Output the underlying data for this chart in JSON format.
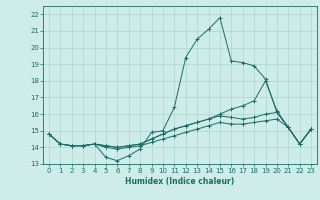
{
  "xlabel": "Humidex (Indice chaleur)",
  "bg_color": "#cdecea",
  "grid_color": "#aed4d0",
  "line_color": "#1a6e62",
  "xlim": [
    -0.5,
    23.5
  ],
  "ylim": [
    13,
    22.5
  ],
  "xticks": [
    0,
    1,
    2,
    3,
    4,
    5,
    6,
    7,
    8,
    9,
    10,
    11,
    12,
    13,
    14,
    15,
    16,
    17,
    18,
    19,
    20,
    21,
    22,
    23
  ],
  "yticks": [
    13,
    14,
    15,
    16,
    17,
    18,
    19,
    20,
    21,
    22
  ],
  "lines": [
    {
      "x": [
        0,
        1,
        2,
        3,
        4,
        5,
        6,
        7,
        8,
        9,
        10,
        11,
        12,
        13,
        14,
        15,
        16,
        17,
        18,
        19,
        20,
        21,
        22,
        23
      ],
      "y": [
        14.8,
        14.2,
        14.1,
        14.1,
        14.2,
        13.4,
        13.2,
        13.5,
        13.9,
        14.9,
        15.0,
        16.4,
        19.4,
        20.5,
        21.1,
        21.8,
        19.2,
        19.1,
        18.9,
        18.1,
        16.1,
        15.2,
        14.2,
        15.1
      ]
    },
    {
      "x": [
        0,
        1,
        2,
        3,
        4,
        5,
        6,
        7,
        8,
        9,
        10,
        11,
        12,
        13,
        14,
        15,
        16,
        17,
        18,
        19,
        20,
        21,
        22,
        23
      ],
      "y": [
        14.8,
        14.2,
        14.1,
        14.1,
        14.2,
        14.1,
        14.0,
        14.1,
        14.2,
        14.5,
        14.8,
        15.1,
        15.3,
        15.5,
        15.7,
        16.0,
        16.3,
        16.5,
        16.8,
        18.0,
        16.2,
        15.2,
        14.2,
        15.1
      ]
    },
    {
      "x": [
        0,
        1,
        2,
        3,
        4,
        5,
        6,
        7,
        8,
        9,
        10,
        11,
        12,
        13,
        14,
        15,
        16,
        17,
        18,
        19,
        20,
        21,
        22,
        23
      ],
      "y": [
        14.8,
        14.2,
        14.1,
        14.1,
        14.2,
        14.1,
        14.0,
        14.1,
        14.2,
        14.5,
        14.8,
        15.1,
        15.3,
        15.5,
        15.7,
        15.9,
        15.8,
        15.7,
        15.8,
        16.0,
        16.1,
        15.2,
        14.2,
        15.1
      ]
    },
    {
      "x": [
        0,
        1,
        2,
        3,
        4,
        5,
        6,
        7,
        8,
        9,
        10,
        11,
        12,
        13,
        14,
        15,
        16,
        17,
        18,
        19,
        20,
        21,
        22,
        23
      ],
      "y": [
        14.8,
        14.2,
        14.1,
        14.1,
        14.2,
        14.0,
        13.9,
        14.0,
        14.1,
        14.3,
        14.5,
        14.7,
        14.9,
        15.1,
        15.3,
        15.5,
        15.4,
        15.4,
        15.5,
        15.6,
        15.7,
        15.2,
        14.2,
        15.1
      ]
    }
  ]
}
